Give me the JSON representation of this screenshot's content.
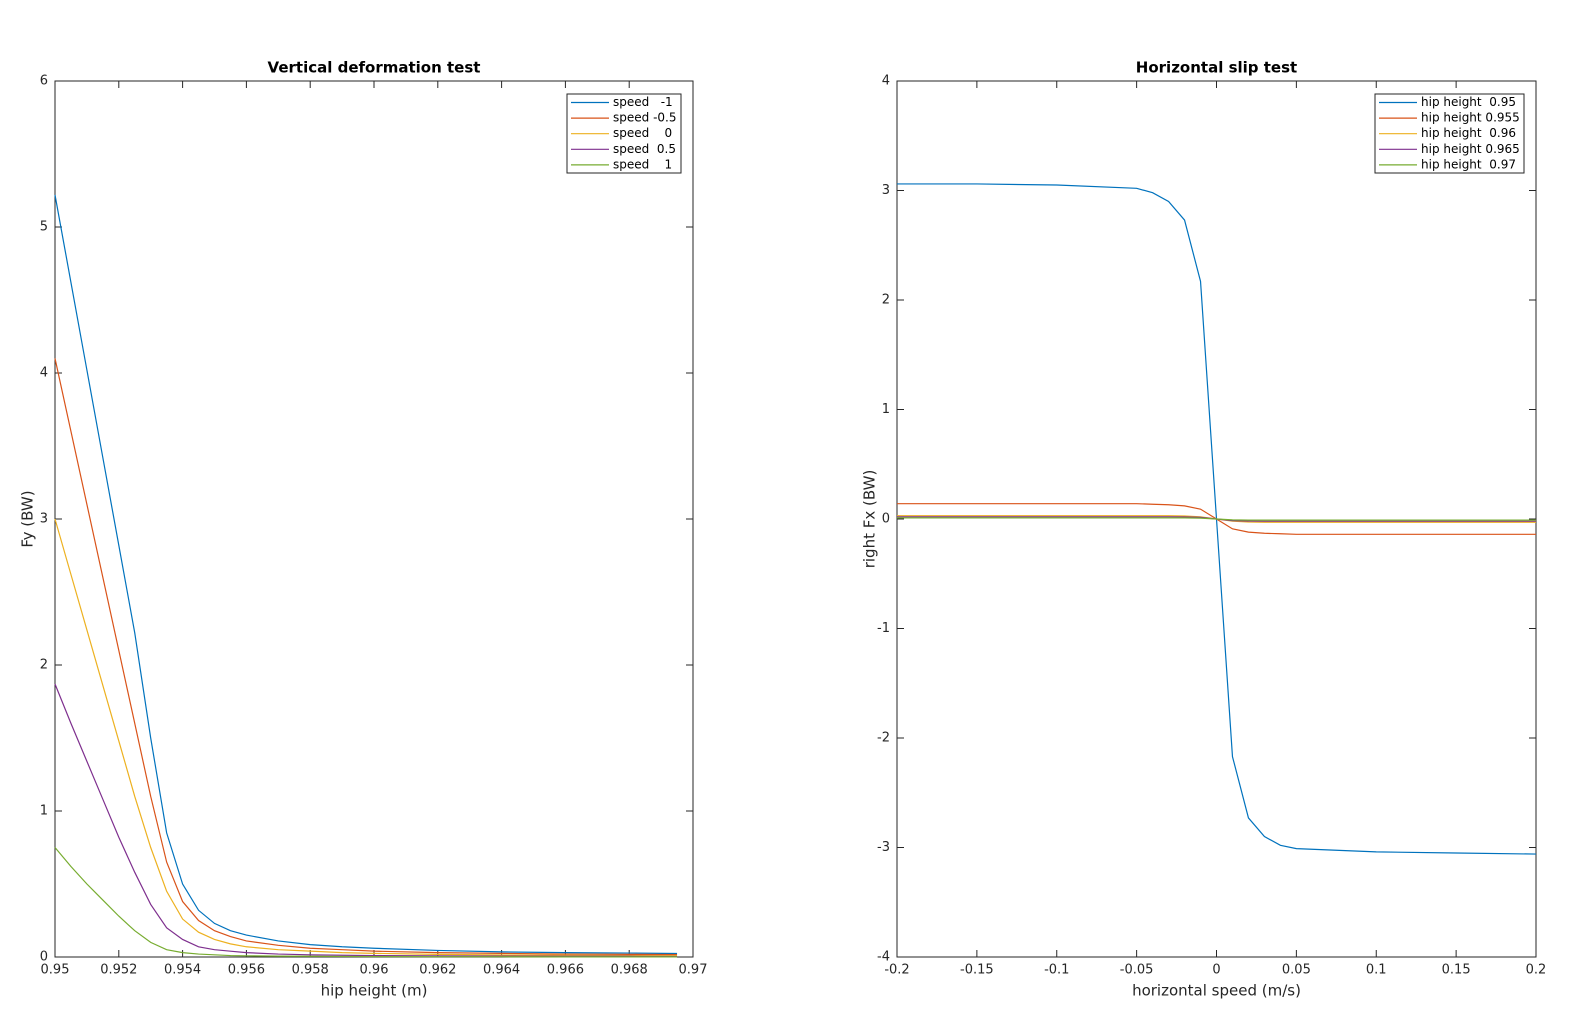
{
  "chart_data": [
    {
      "type": "line",
      "title": "Vertical deformation test",
      "x_label": "hip height (m)",
      "y_label": "Fy (BW)",
      "x": [
        0.95,
        0.9505,
        0.951,
        0.9515,
        0.952,
        0.9525,
        0.953,
        0.9535,
        0.954,
        0.9545,
        0.955,
        0.9555,
        0.956,
        0.957,
        0.958,
        0.959,
        0.96,
        0.962,
        0.964,
        0.966,
        0.968,
        0.9695
      ],
      "series": [
        {
          "name": "speed   -1",
          "color": "#0072bd",
          "values": [
            5.22,
            4.62,
            4.02,
            3.42,
            2.82,
            2.22,
            1.5,
            0.85,
            0.5,
            0.32,
            0.23,
            0.18,
            0.15,
            0.11,
            0.085,
            0.07,
            0.06,
            0.045,
            0.035,
            0.03,
            0.027,
            0.024
          ]
        },
        {
          "name": "speed -0.5",
          "color": "#d95319",
          "values": [
            4.1,
            3.6,
            3.1,
            2.6,
            2.1,
            1.6,
            1.1,
            0.65,
            0.38,
            0.25,
            0.18,
            0.14,
            0.11,
            0.08,
            0.06,
            0.05,
            0.04,
            0.03,
            0.025,
            0.02,
            0.018,
            0.016
          ]
        },
        {
          "name": "speed    0",
          "color": "#edb120",
          "values": [
            3.0,
            2.62,
            2.24,
            1.86,
            1.48,
            1.1,
            0.75,
            0.45,
            0.26,
            0.17,
            0.12,
            0.09,
            0.07,
            0.05,
            0.04,
            0.03,
            0.025,
            0.018,
            0.014,
            0.012,
            0.01,
            0.009
          ]
        },
        {
          "name": "speed  0.5",
          "color": "#7e2f8e",
          "values": [
            1.87,
            1.6,
            1.34,
            1.08,
            0.82,
            0.58,
            0.36,
            0.2,
            0.12,
            0.07,
            0.05,
            0.04,
            0.03,
            0.02,
            0.015,
            0.012,
            0.01,
            0.008,
            0.006,
            0.005,
            0.005,
            0.004
          ]
        },
        {
          "name": "speed    1",
          "color": "#77ac30",
          "values": [
            0.75,
            0.62,
            0.5,
            0.39,
            0.28,
            0.18,
            0.1,
            0.05,
            0.03,
            0.02,
            0.015,
            0.01,
            0.008,
            0.006,
            0.005,
            0.004,
            0.003,
            0.002,
            0.002,
            0.001,
            0.001,
            0.001
          ]
        }
      ],
      "xlim": [
        0.95,
        0.97
      ],
      "xticks": [
        0.95,
        0.952,
        0.954,
        0.956,
        0.958,
        0.96,
        0.962,
        0.964,
        0.966,
        0.968,
        0.97
      ],
      "ylim": [
        0,
        6
      ],
      "yticks": [
        0,
        1,
        2,
        3,
        4,
        5,
        6
      ],
      "grid": false,
      "legend": "northeast"
    },
    {
      "type": "line",
      "title": "Horizontal slip test",
      "x_label": "horizontal speed (m/s)",
      "y_label": "right Fx (BW)",
      "x": [
        -0.2,
        -0.15,
        -0.1,
        -0.05,
        -0.04,
        -0.03,
        -0.02,
        -0.01,
        0,
        0.01,
        0.02,
        0.03,
        0.04,
        0.05,
        0.1,
        0.15,
        0.2
      ],
      "series": [
        {
          "name": "hip height  0.95",
          "color": "#0072bd",
          "values": [
            3.06,
            3.06,
            3.05,
            3.02,
            2.98,
            2.9,
            2.73,
            2.17,
            0,
            -2.17,
            -2.73,
            -2.9,
            -2.98,
            -3.01,
            -3.04,
            -3.05,
            -3.06
          ]
        },
        {
          "name": "hip height 0.955",
          "color": "#d95319",
          "values": [
            0.14,
            0.14,
            0.14,
            0.14,
            0.135,
            0.13,
            0.12,
            0.09,
            0,
            -0.09,
            -0.12,
            -0.13,
            -0.135,
            -0.14,
            -0.14,
            -0.14,
            -0.14
          ]
        },
        {
          "name": "hip height  0.96",
          "color": "#edb120",
          "values": [
            0.03,
            0.03,
            0.03,
            0.03,
            0.03,
            0.03,
            0.028,
            0.02,
            0,
            -0.02,
            -0.028,
            -0.03,
            -0.03,
            -0.03,
            -0.03,
            -0.03,
            -0.03
          ]
        },
        {
          "name": "hip height 0.965",
          "color": "#7e2f8e",
          "values": [
            0.02,
            0.02,
            0.02,
            0.02,
            0.02,
            0.02,
            0.019,
            0.015,
            0,
            -0.015,
            -0.019,
            -0.02,
            -0.02,
            -0.02,
            -0.02,
            -0.02,
            -0.02
          ]
        },
        {
          "name": "hip height  0.97",
          "color": "#77ac30",
          "values": [
            0.01,
            0.01,
            0.01,
            0.01,
            0.01,
            0.01,
            0.01,
            0.008,
            0,
            -0.008,
            -0.01,
            -0.01,
            -0.01,
            -0.01,
            -0.01,
            -0.01,
            -0.01
          ]
        }
      ],
      "xlim": [
        -0.2,
        0.2
      ],
      "xticks": [
        -0.2,
        -0.15,
        -0.1,
        -0.05,
        0,
        0.05,
        0.1,
        0.15,
        0.2
      ],
      "ylim": [
        -4,
        4
      ],
      "yticks": [
        -4,
        -3,
        -2,
        -1,
        0,
        1,
        2,
        3,
        4
      ],
      "grid": false,
      "legend": "northeast"
    }
  ]
}
